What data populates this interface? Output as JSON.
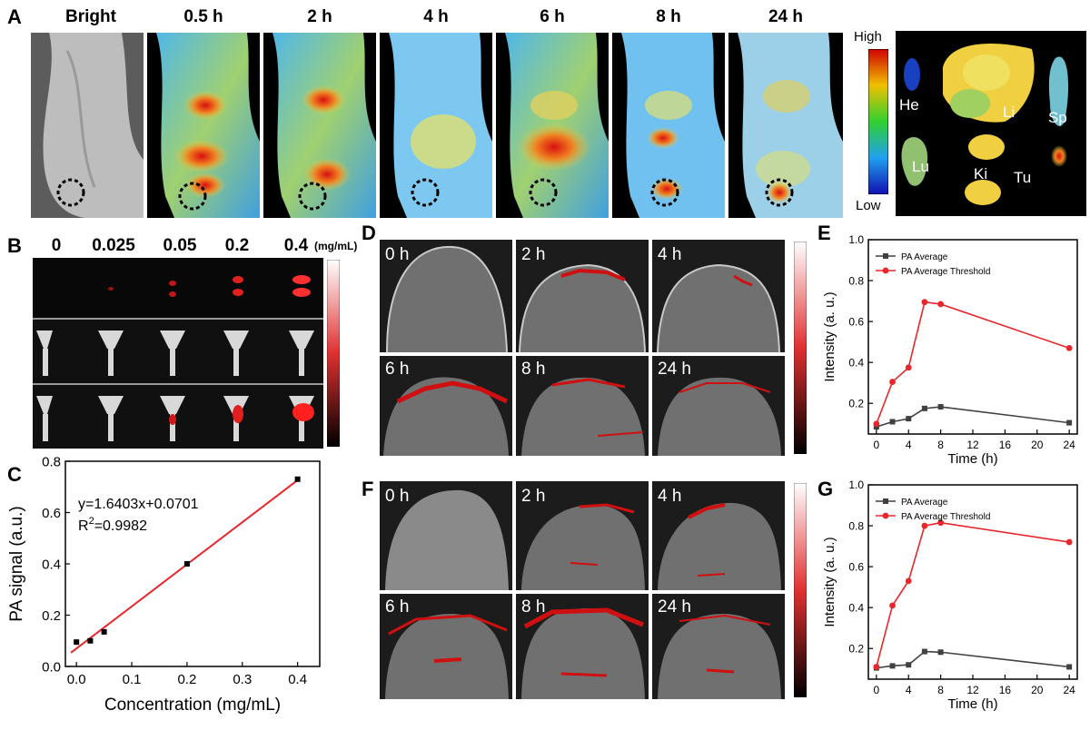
{
  "panels": {
    "A": "A",
    "B": "B",
    "C": "C",
    "D": "D",
    "E": "E",
    "F": "F",
    "G": "G"
  },
  "panelA": {
    "headers": [
      "Bright",
      "0.5 h",
      "2 h",
      "4 h",
      "6 h",
      "8 h",
      "24 h"
    ],
    "colorbar": {
      "high": "High",
      "low": "Low"
    },
    "organs": [
      "He",
      "Li",
      "Sp",
      "Lu",
      "Ki",
      "Tu"
    ]
  },
  "panelB": {
    "concentrations": [
      "0",
      "0.025",
      "0.05",
      "0.2",
      "0.4"
    ],
    "unit": "(mg/mL)"
  },
  "panelD": {
    "times": [
      "0 h",
      "2 h",
      "4 h",
      "6 h",
      "8 h",
      "24 h"
    ]
  },
  "panelF": {
    "times": [
      "0 h",
      "2 h",
      "4 h",
      "6 h",
      "8 h",
      "24 h"
    ]
  },
  "colors": {
    "red": "#e8262b",
    "gray": "#404040",
    "fit": "#e8262b"
  },
  "chart_data": [
    {
      "id": "C",
      "type": "scatter",
      "xlabel": "Concentration (mg/mL)",
      "ylabel": "PA signal (a.u.)",
      "xlim": [
        -0.02,
        0.44
      ],
      "ylim": [
        0,
        0.8
      ],
      "xticks": [
        0.0,
        0.1,
        0.2,
        0.3,
        0.4
      ],
      "xtick_labels": [
        "0.0",
        "0.1",
        "0.2",
        "0.3",
        "0.4"
      ],
      "yticks": [
        0.0,
        0.2,
        0.4,
        0.6,
        0.8
      ],
      "ytick_labels": [
        "0.0",
        "0.2",
        "0.4",
        "0.6",
        "0.8"
      ],
      "points": {
        "x": [
          0,
          0.025,
          0.05,
          0.2,
          0.4
        ],
        "y": [
          0.095,
          0.1,
          0.135,
          0.4,
          0.73
        ]
      },
      "fit": {
        "slope": 1.6403,
        "intercept": 0.0701
      },
      "annotations": [
        "y=1.6403x+0.0701",
        "R",
        "2",
        "=0.9982"
      ]
    },
    {
      "id": "E",
      "type": "line",
      "xlabel": "Time (h)",
      "ylabel": "Intensity (a. u.)",
      "xlim": [
        -1,
        25
      ],
      "ylim": [
        0.05,
        1.0
      ],
      "xticks": [
        0,
        4,
        8,
        12,
        16,
        20,
        24
      ],
      "xtick_labels": [
        "0",
        "4",
        "8",
        "12",
        "16",
        "20",
        "24"
      ],
      "yticks": [
        0.2,
        0.4,
        0.6,
        0.8,
        1.0
      ],
      "ytick_labels": [
        "0.2",
        "0.4",
        "0.6",
        "0.8",
        "1.0"
      ],
      "x": [
        0,
        2,
        4,
        6,
        8,
        24
      ],
      "series": [
        {
          "name": "PA Average",
          "values": [
            0.085,
            0.11,
            0.125,
            0.175,
            0.183,
            0.105
          ]
        },
        {
          "name": "PA Average Threshold",
          "values": [
            0.1,
            0.305,
            0.375,
            0.695,
            0.685,
            0.47
          ]
        }
      ]
    },
    {
      "id": "G",
      "type": "line",
      "xlabel": "Time (h)",
      "ylabel": "Intensity (a. u.)",
      "xlim": [
        -1,
        25
      ],
      "ylim": [
        0.05,
        1.0
      ],
      "xticks": [
        0,
        4,
        8,
        12,
        16,
        20,
        24
      ],
      "xtick_labels": [
        "0",
        "4",
        "8",
        "12",
        "16",
        "20",
        "24"
      ],
      "yticks": [
        0.2,
        0.4,
        0.6,
        0.8,
        1.0
      ],
      "ytick_labels": [
        "0.2",
        "0.4",
        "0.6",
        "0.8",
        "1.0"
      ],
      "x": [
        0,
        2,
        4,
        6,
        8,
        24
      ],
      "series": [
        {
          "name": "PA Average",
          "values": [
            0.105,
            0.115,
            0.12,
            0.185,
            0.182,
            0.11
          ]
        },
        {
          "name": "PA Average Threshold",
          "values": [
            0.11,
            0.41,
            0.53,
            0.8,
            0.815,
            0.72
          ]
        }
      ]
    }
  ]
}
